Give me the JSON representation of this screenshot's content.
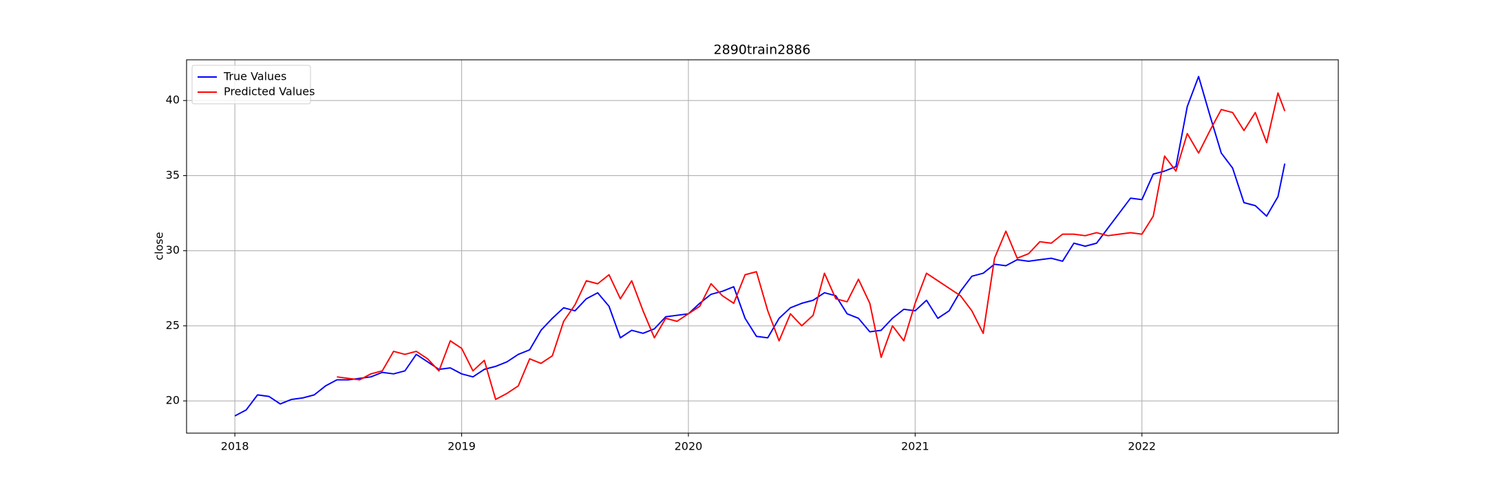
{
  "chart_data": {
    "type": "line",
    "title": "2890train2886",
    "ylabel": "close",
    "x": [
      2018.0,
      2018.05,
      2018.1,
      2018.15,
      2018.2,
      2018.25,
      2018.3,
      2018.35,
      2018.4,
      2018.45,
      2018.5,
      2018.55,
      2018.6,
      2018.65,
      2018.7,
      2018.75,
      2018.8,
      2018.85,
      2018.9,
      2018.95,
      2019.0,
      2019.05,
      2019.1,
      2019.15,
      2019.2,
      2019.25,
      2019.3,
      2019.35,
      2019.4,
      2019.45,
      2019.5,
      2019.55,
      2019.6,
      2019.65,
      2019.7,
      2019.75,
      2019.8,
      2019.85,
      2019.9,
      2019.95,
      2020.0,
      2020.05,
      2020.1,
      2020.15,
      2020.2,
      2020.25,
      2020.3,
      2020.35,
      2020.4,
      2020.45,
      2020.5,
      2020.55,
      2020.6,
      2020.65,
      2020.7,
      2020.75,
      2020.8,
      2020.85,
      2020.9,
      2020.95,
      2021.0,
      2021.05,
      2021.1,
      2021.15,
      2021.2,
      2021.25,
      2021.3,
      2021.35,
      2021.4,
      2021.45,
      2021.5,
      2021.55,
      2021.6,
      2021.65,
      2021.7,
      2021.75,
      2021.8,
      2021.85,
      2021.9,
      2021.95,
      2022.0,
      2022.05,
      2022.1,
      2022.15,
      2022.2,
      2022.25,
      2022.3,
      2022.35,
      2022.4,
      2022.45,
      2022.5,
      2022.55,
      2022.6,
      2022.63
    ],
    "series": [
      {
        "name": "True Values",
        "color": "#0000ff",
        "values": [
          19.0,
          19.4,
          20.4,
          20.3,
          19.8,
          20.1,
          20.2,
          20.4,
          21.0,
          21.4,
          21.4,
          21.5,
          21.6,
          21.9,
          21.8,
          22.0,
          23.1,
          22.6,
          22.1,
          22.2,
          21.8,
          21.6,
          22.1,
          22.3,
          22.6,
          23.1,
          23.4,
          24.7,
          25.5,
          26.2,
          26.0,
          26.8,
          27.2,
          26.3,
          24.2,
          24.7,
          24.5,
          24.8,
          25.6,
          25.7,
          25.8,
          26.5,
          27.1,
          27.3,
          27.6,
          25.5,
          24.3,
          24.2,
          25.5,
          26.2,
          26.5,
          26.7,
          27.2,
          27.0,
          25.8,
          25.5,
          24.6,
          24.7,
          25.5,
          26.1,
          26.0,
          26.7,
          25.5,
          26.0,
          27.3,
          28.3,
          28.5,
          29.1,
          29.0,
          29.4,
          29.3,
          29.4,
          29.5,
          29.3,
          30.5,
          30.3,
          30.5,
          31.5,
          32.5,
          33.5,
          33.4,
          35.1,
          35.3,
          35.6,
          39.6,
          41.6,
          39.0,
          36.5,
          35.5,
          33.2,
          33.0,
          32.3,
          33.6,
          35.8
        ]
      },
      {
        "name": "Predicted Values",
        "color": "#ff0000",
        "values": [
          null,
          null,
          null,
          null,
          null,
          null,
          null,
          null,
          null,
          21.6,
          21.5,
          21.4,
          21.8,
          22.0,
          23.3,
          23.1,
          23.3,
          22.8,
          22.0,
          24.0,
          23.5,
          22.0,
          22.7,
          20.1,
          20.5,
          21.0,
          22.8,
          22.5,
          23.0,
          25.3,
          26.4,
          28.0,
          27.8,
          28.4,
          26.8,
          28.0,
          26.0,
          24.2,
          25.5,
          25.3,
          25.8,
          26.3,
          27.8,
          27.0,
          26.5,
          28.4,
          28.6,
          26.0,
          24.0,
          25.8,
          25.0,
          25.7,
          28.5,
          26.8,
          26.6,
          28.1,
          26.5,
          22.9,
          25.0,
          24.0,
          26.5,
          28.5,
          28.0,
          27.5,
          27.0,
          26.0,
          24.5,
          29.5,
          31.3,
          29.5,
          29.8,
          30.6,
          30.5,
          31.1,
          31.1,
          31.0,
          31.2,
          31.0,
          31.1,
          31.2,
          31.1,
          32.3,
          36.3,
          35.3,
          37.8,
          36.5,
          38.0,
          39.4,
          39.2,
          38.0,
          39.2,
          37.2,
          40.5,
          39.3
        ]
      }
    ],
    "xlim": [
      2017.787,
      2022.866
    ],
    "xticks": [
      2018,
      2019,
      2020,
      2021,
      2022
    ],
    "ylim": [
      17.855,
      42.71
    ],
    "yticks": [
      20,
      25,
      30,
      35,
      40
    ],
    "grid": true,
    "legend": "upper-left"
  }
}
